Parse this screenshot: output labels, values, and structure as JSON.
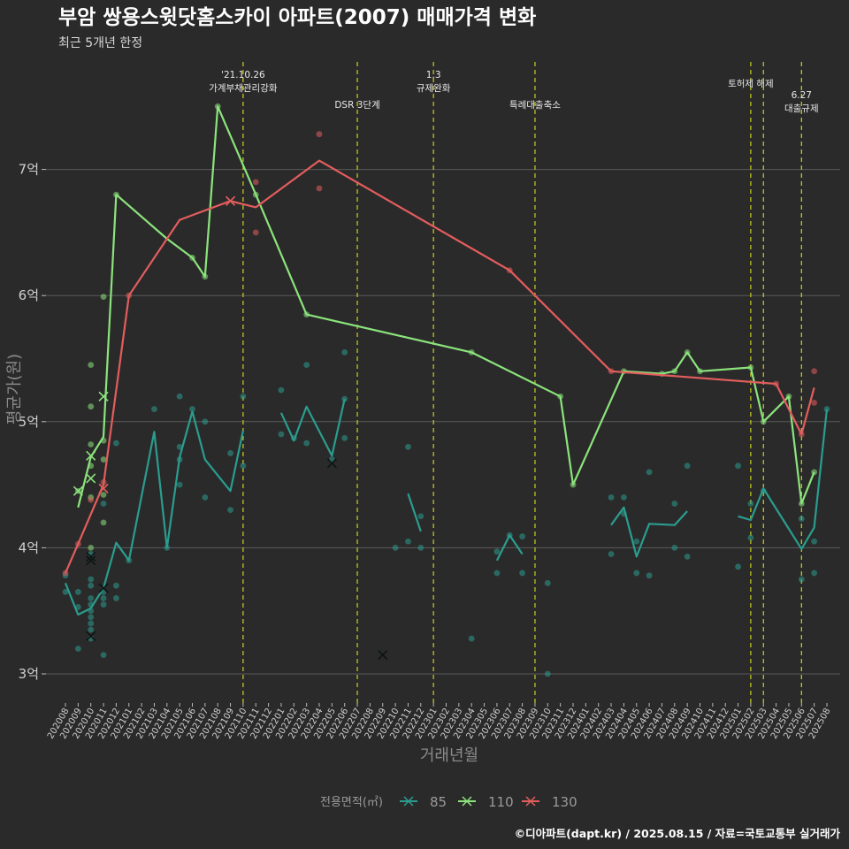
{
  "header": {
    "title": "부암 쌍용스윗닷홈스카이 아파트(2007) 매매가격 변화",
    "subtitle": "최근 5개년 한정"
  },
  "footer": {
    "credit": "©디아파트(dapt.kr) / 2025.08.15 / 자료=국토교통부 실거래가"
  },
  "colors": {
    "background": "#2b2a2a",
    "grid": "#5a5a5a",
    "event_line": "#c8d21e",
    "s85": "#2a9d8f",
    "s110": "#8be47c",
    "s130": "#e35d5d"
  },
  "chart_data": {
    "type": "line",
    "xlabel": "거래년월",
    "ylabel": "평균가(원)",
    "ylim": [
      2.8,
      7.95
    ],
    "yticks": [
      3,
      4,
      5,
      6,
      7
    ],
    "ytick_labels": [
      "3억",
      "4억",
      "5억",
      "6억",
      "7억"
    ],
    "x_range": [
      "2020-08",
      "2025-08"
    ],
    "xtick_labels": [
      "202008",
      "202009",
      "202010",
      "202011",
      "202012",
      "202101",
      "202102",
      "202103",
      "202104",
      "202105",
      "202106",
      "202107",
      "202108",
      "202109",
      "202110",
      "202111",
      "202112",
      "202201",
      "202202",
      "202203",
      "202204",
      "202205",
      "202206",
      "202207",
      "202208",
      "202209",
      "202210",
      "202211",
      "202212",
      "202301",
      "202302",
      "202303",
      "202304",
      "202305",
      "202306",
      "202307",
      "202308",
      "202309",
      "202310",
      "202311",
      "202312",
      "202401",
      "202402",
      "202403",
      "202404",
      "202405",
      "202406",
      "202407",
      "202408",
      "202409",
      "202410",
      "202411",
      "202412",
      "202501",
      "202502",
      "202503",
      "202504",
      "202505",
      "202506",
      "202507",
      "202508"
    ],
    "grid": "horizontal",
    "legend": {
      "title": "전용면적(㎡)",
      "position": "bottom",
      "items": [
        "85",
        "110",
        "130"
      ]
    },
    "events": [
      {
        "date": "2021-10",
        "label": "'21.10.26",
        "label2": "가계부채관리강화"
      },
      {
        "date": "2022-07",
        "label": "DSR 3단계",
        "label2": ""
      },
      {
        "date": "2023-01",
        "label": "1.3",
        "label2": "규제완화"
      },
      {
        "date": "2023-09",
        "label": "특례대출축소",
        "label2": ""
      },
      {
        "date": "2025-02",
        "label": "토허제 해제",
        "label2": ""
      },
      {
        "date": "2025-03",
        "label": "",
        "label2": ""
      },
      {
        "date": "2025-06",
        "label": "6.27",
        "label2": "대출규제"
      }
    ],
    "series": [
      {
        "name": "85",
        "segments": [
          [
            [
              "2020-08",
              3.72
            ],
            [
              "2020-09",
              3.47
            ],
            [
              "2020-10",
              3.52
            ],
            [
              "2020-11",
              3.68
            ],
            [
              "2020-12",
              4.04
            ],
            [
              "2021-01",
              3.9
            ],
            [
              "2021-03",
              4.92
            ],
            [
              "2021-04",
              4.0
            ],
            [
              "2021-05",
              4.72
            ],
            [
              "2021-06",
              5.08
            ],
            [
              "2021-07",
              4.7
            ],
            [
              "2021-09",
              4.45
            ],
            [
              "2021-10",
              4.93
            ]
          ],
          [
            [
              "2022-01",
              5.07
            ],
            [
              "2022-02",
              4.85
            ],
            [
              "2022-03",
              5.12
            ],
            [
              "2022-05",
              4.73
            ],
            [
              "2022-06",
              5.18
            ]
          ],
          [
            [
              "2022-11",
              4.43
            ],
            [
              "2022-12",
              4.13
            ]
          ],
          [
            [
              "2023-06",
              3.9
            ],
            [
              "2023-07",
              4.1
            ],
            [
              "2023-08",
              3.95
            ]
          ],
          [
            [
              "2024-03",
              4.18
            ],
            [
              "2024-04",
              4.32
            ],
            [
              "2024-05",
              3.93
            ],
            [
              "2024-06",
              4.19
            ],
            [
              "2024-08",
              4.18
            ],
            [
              "2024-09",
              4.29
            ]
          ],
          [
            [
              "2025-01",
              4.25
            ],
            [
              "2025-02",
              4.22
            ],
            [
              "2025-03",
              4.47
            ],
            [
              "2025-06",
              3.99
            ],
            [
              "2025-07",
              4.16
            ],
            [
              "2025-08",
              5.1
            ]
          ]
        ],
        "points": [
          [
            "2020-08",
            3.78
          ],
          [
            "2020-08",
            3.65
          ],
          [
            "2020-09",
            3.65
          ],
          [
            "2020-09",
            3.53
          ],
          [
            "2020-09",
            3.2
          ],
          [
            "2020-10",
            3.7
          ],
          [
            "2020-10",
            3.6
          ],
          [
            "2020-10",
            3.55
          ],
          [
            "2020-10",
            3.5
          ],
          [
            "2020-10",
            3.45
          ],
          [
            "2020-10",
            3.4
          ],
          [
            "2020-10",
            3.35
          ],
          [
            "2020-10",
            3.28
          ],
          [
            "2020-10",
            3.95
          ],
          [
            "2020-10",
            3.75
          ],
          [
            "2020-11",
            3.65
          ],
          [
            "2020-11",
            3.6
          ],
          [
            "2020-11",
            3.55
          ],
          [
            "2020-11",
            3.15
          ],
          [
            "2020-11",
            4.35
          ],
          [
            "2020-12",
            3.7
          ],
          [
            "2020-12",
            3.6
          ],
          [
            "2020-12",
            4.83
          ],
          [
            "2021-01",
            3.9
          ],
          [
            "2021-03",
            5.1
          ],
          [
            "2021-04",
            4.0
          ],
          [
            "2021-05",
            5.2
          ],
          [
            "2021-05",
            4.5
          ],
          [
            "2021-05",
            4.8
          ],
          [
            "2021-05",
            4.7
          ],
          [
            "2021-06",
            5.1
          ],
          [
            "2021-07",
            5.0
          ],
          [
            "2021-07",
            4.4
          ],
          [
            "2021-09",
            4.75
          ],
          [
            "2021-09",
            4.3
          ],
          [
            "2021-10",
            5.2
          ],
          [
            "2021-10",
            4.65
          ],
          [
            "2022-01",
            5.25
          ],
          [
            "2022-01",
            4.9
          ],
          [
            "2022-02",
            4.87
          ],
          [
            "2022-03",
            5.45
          ],
          [
            "2022-03",
            4.83
          ],
          [
            "2022-06",
            5.55
          ],
          [
            "2022-06",
            4.87
          ],
          [
            "2022-06",
            5.18
          ],
          [
            "2022-05",
            4.7
          ],
          [
            "2022-10",
            4.0
          ],
          [
            "2022-11",
            4.8
          ],
          [
            "2022-11",
            4.05
          ],
          [
            "2022-12",
            4.25
          ],
          [
            "2022-12",
            4.0
          ],
          [
            "2023-04",
            3.28
          ],
          [
            "2023-06",
            3.8
          ],
          [
            "2023-06",
            3.97
          ],
          [
            "2023-07",
            4.1
          ],
          [
            "2023-08",
            4.09
          ],
          [
            "2023-08",
            3.8
          ],
          [
            "2023-10",
            3.72
          ],
          [
            "2023-10",
            3.0
          ],
          [
            "2024-03",
            4.4
          ],
          [
            "2024-03",
            3.95
          ],
          [
            "2024-04",
            4.4
          ],
          [
            "2024-04",
            4.27
          ],
          [
            "2024-05",
            4.05
          ],
          [
            "2024-05",
            3.8
          ],
          [
            "2024-06",
            4.6
          ],
          [
            "2024-06",
            3.78
          ],
          [
            "2024-08",
            4.35
          ],
          [
            "2024-08",
            4.0
          ],
          [
            "2024-09",
            4.65
          ],
          [
            "2024-09",
            3.93
          ],
          [
            "2025-01",
            4.65
          ],
          [
            "2025-01",
            3.85
          ],
          [
            "2025-02",
            4.35
          ],
          [
            "2025-02",
            4.08
          ],
          [
            "2025-03",
            4.45
          ],
          [
            "2025-06",
            4.23
          ],
          [
            "2025-06",
            3.75
          ],
          [
            "2025-07",
            4.05
          ],
          [
            "2025-07",
            3.8
          ],
          [
            "2025-08",
            5.1
          ]
        ],
        "cancelled": [
          [
            "2020-10",
            3.93
          ],
          [
            "2020-10",
            3.9
          ],
          [
            "2020-10",
            3.3
          ],
          [
            "2020-11",
            3.68
          ],
          [
            "2022-05",
            4.67
          ],
          [
            "2022-09",
            3.15
          ]
        ]
      },
      {
        "name": "110",
        "segments": [
          [
            [
              "2020-09",
              4.32
            ],
            [
              "2020-10",
              4.72
            ],
            [
              "2020-11",
              4.88
            ],
            [
              "2020-12",
              6.8
            ],
            [
              "2021-04",
              6.45
            ],
            [
              "2021-06",
              6.3
            ],
            [
              "2021-07",
              6.15
            ],
            [
              "2021-08",
              7.5
            ],
            [
              "2021-11",
              6.8
            ],
            [
              "2022-03",
              5.85
            ],
            [
              "2023-04",
              5.55
            ],
            [
              "2023-11",
              5.2
            ],
            [
              "2023-12",
              4.5
            ],
            [
              "2024-04",
              5.4
            ],
            [
              "2024-07",
              5.38
            ],
            [
              "2024-08",
              5.4
            ],
            [
              "2024-09",
              5.55
            ],
            [
              "2024-10",
              5.4
            ],
            [
              "2025-02",
              5.43
            ],
            [
              "2025-03",
              5.0
            ],
            [
              "2025-05",
              5.2
            ],
            [
              "2025-06",
              4.35
            ],
            [
              "2025-07",
              4.6
            ]
          ]
        ],
        "points": [
          [
            "2020-09",
            4.45
          ],
          [
            "2020-10",
            5.45
          ],
          [
            "2020-10",
            5.12
          ],
          [
            "2020-10",
            4.82
          ],
          [
            "2020-10",
            4.65
          ],
          [
            "2020-10",
            4.4
          ],
          [
            "2020-10",
            4.0
          ],
          [
            "2020-11",
            5.99
          ],
          [
            "2020-11",
            4.85
          ],
          [
            "2020-11",
            4.7
          ],
          [
            "2020-11",
            4.42
          ],
          [
            "2020-11",
            4.2
          ],
          [
            "2020-12",
            6.8
          ],
          [
            "2021-06",
            6.3
          ],
          [
            "2021-07",
            6.15
          ],
          [
            "2021-08",
            7.5
          ],
          [
            "2021-11",
            6.8
          ],
          [
            "2022-03",
            5.85
          ],
          [
            "2023-04",
            5.55
          ],
          [
            "2023-11",
            5.2
          ],
          [
            "2023-12",
            4.5
          ],
          [
            "2024-04",
            5.4
          ],
          [
            "2024-07",
            5.38
          ],
          [
            "2024-08",
            5.4
          ],
          [
            "2024-09",
            5.55
          ],
          [
            "2024-10",
            5.4
          ],
          [
            "2025-02",
            5.43
          ],
          [
            "2025-03",
            5.0
          ],
          [
            "2025-05",
            5.2
          ],
          [
            "2025-06",
            4.35
          ],
          [
            "2025-07",
            4.6
          ]
        ],
        "cancelled": [
          [
            "2020-09",
            4.45
          ],
          [
            "2020-10",
            4.73
          ],
          [
            "2020-10",
            4.55
          ],
          [
            "2020-11",
            5.2
          ]
        ]
      },
      {
        "name": "130",
        "segments": [
          [
            [
              "2020-08",
              3.8
            ],
            [
              "2020-09",
              4.03
            ],
            [
              "2020-11",
              4.5
            ],
            [
              "2021-01",
              6.0
            ],
            [
              "2021-04",
              6.45
            ],
            [
              "2021-05",
              6.6
            ],
            [
              "2021-09",
              6.75
            ],
            [
              "2021-11",
              6.7
            ],
            [
              "2022-04",
              7.07
            ],
            [
              "2023-07",
              6.2
            ],
            [
              "2024-03",
              5.4
            ],
            [
              "2025-04",
              5.3
            ],
            [
              "2025-06",
              4.9
            ],
            [
              "2025-07",
              5.27
            ]
          ]
        ],
        "points": [
          [
            "2020-08",
            3.8
          ],
          [
            "2020-09",
            4.03
          ],
          [
            "2020-10",
            4.38
          ],
          [
            "2020-11",
            4.52
          ],
          [
            "2021-01",
            6.0
          ],
          [
            "2021-11",
            6.9
          ],
          [
            "2021-11",
            6.5
          ],
          [
            "2022-04",
            7.28
          ],
          [
            "2022-04",
            6.85
          ],
          [
            "2023-07",
            6.2
          ],
          [
            "2024-03",
            5.4
          ],
          [
            "2025-04",
            5.3
          ],
          [
            "2025-06",
            4.9
          ],
          [
            "2025-07",
            5.4
          ],
          [
            "2025-07",
            5.15
          ]
        ],
        "cancelled": [
          [
            "2020-11",
            4.47
          ],
          [
            "2021-09",
            6.75
          ]
        ]
      }
    ]
  }
}
